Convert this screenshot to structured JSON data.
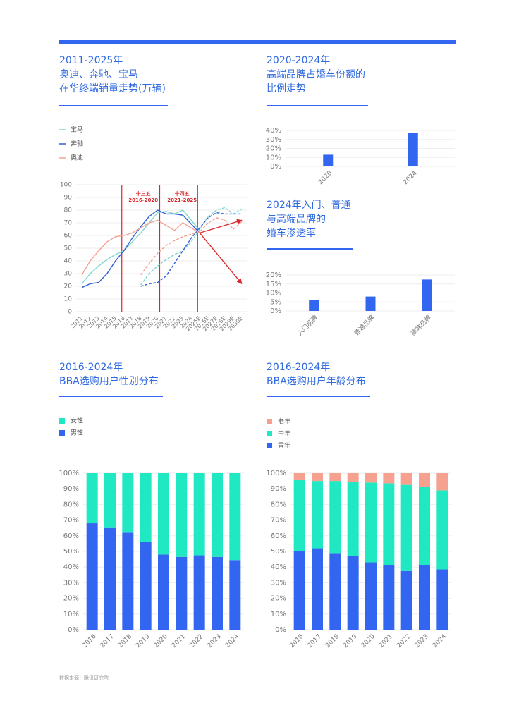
{
  "chart_data": [
    {
      "type": "line",
      "title": "2011-2025年\n奥迪、奔驰、宝马\n在华终端销量走势(万辆)",
      "categories": [
        "2011",
        "2012",
        "2013",
        "2014",
        "2015",
        "2016",
        "2017",
        "2018",
        "2019",
        "2020",
        "2021",
        "2022",
        "2023",
        "2024",
        "2025E",
        "2026E",
        "2027E",
        "2028E",
        "2029E",
        "2030E"
      ],
      "series": [
        {
          "name": "宝马",
          "color": "#7dd8cf",
          "values": [
            22,
            30,
            36,
            41,
            45,
            48,
            55,
            62,
            70,
            78,
            79,
            77,
            80,
            72,
            64,
            null,
            null,
            null,
            null,
            null
          ],
          "forecast_values": [
            null,
            null,
            null,
            null,
            null,
            null,
            null,
            21,
            30,
            36,
            41,
            45,
            48,
            55,
            65,
            75,
            80,
            82,
            77,
            81
          ]
        },
        {
          "name": "奔驰",
          "color": "#2f5fd8",
          "values": [
            19,
            22,
            23,
            30,
            40,
            48,
            58,
            67,
            75,
            80,
            77,
            77,
            76,
            69,
            62,
            null,
            null,
            null,
            null,
            null
          ],
          "forecast_values": [
            null,
            null,
            null,
            null,
            null,
            null,
            null,
            20,
            22,
            23,
            28,
            38,
            48,
            58,
            66,
            74,
            78,
            77,
            77,
            77
          ]
        },
        {
          "name": "奥迪",
          "color": "#f2a393",
          "values": [
            29,
            40,
            48,
            55,
            59,
            60,
            62,
            66,
            70,
            72,
            68,
            64,
            70,
            66,
            62,
            null,
            null,
            null,
            null,
            null
          ],
          "forecast_values": [
            null,
            null,
            null,
            null,
            null,
            null,
            null,
            29,
            38,
            46,
            52,
            56,
            59,
            61,
            63,
            70,
            74,
            72,
            65,
            71
          ]
        }
      ],
      "annotations": [
        "十三五\n2016-2020",
        "十四五\n2021-2025"
      ],
      "ylim": [
        0,
        100
      ],
      "yticks": [
        0,
        10,
        20,
        30,
        40,
        50,
        60,
        70,
        80,
        90,
        100
      ],
      "grid": true
    },
    {
      "type": "bar",
      "title": "2020-2024年\n高端品牌占婚车份额的\n比例走势",
      "categories": [
        "2020",
        "2024"
      ],
      "values": [
        13,
        37
      ],
      "color": "#3366f0",
      "ylim": [
        0,
        40
      ],
      "yticks": [
        {
          "value": 0,
          "label": "0%"
        },
        {
          "value": 10,
          "label": "10%"
        },
        {
          "value": 20,
          "label": "20%"
        },
        {
          "value": 30,
          "label": "30%"
        },
        {
          "value": 40,
          "label": "40%"
        }
      ],
      "grid": true
    },
    {
      "type": "bar",
      "title": "2024年入门、普通\n与高端品牌的\n婚车渗透率",
      "categories": [
        "入门品牌",
        "普通品牌",
        "高端品牌"
      ],
      "values": [
        6,
        8,
        17.5
      ],
      "color": "#3366f0",
      "ylim": [
        0,
        20
      ],
      "yticks": [
        {
          "value": 0,
          "label": "0%"
        },
        {
          "value": 5,
          "label": "5%"
        },
        {
          "value": 10,
          "label": "10%"
        },
        {
          "value": 15,
          "label": "15%"
        },
        {
          "value": 20,
          "label": "20%"
        }
      ],
      "grid": true
    },
    {
      "type": "stacked_bar",
      "title": "2016-2024年\nBBA选购用户性别分布",
      "categories": [
        "2016",
        "2017",
        "2018",
        "2019",
        "2020",
        "2021",
        "2022",
        "2023",
        "2024"
      ],
      "series": [
        {
          "name": "男性",
          "color": "#3366f0",
          "values": [
            68,
            65,
            62,
            56,
            48,
            46.5,
            47.5,
            46.5,
            44.5
          ]
        },
        {
          "name": "女性",
          "color": "#1fe8c3",
          "values": [
            32,
            35,
            38,
            44,
            52,
            53.5,
            52.5,
            53.5,
            55.5
          ]
        }
      ],
      "ylim": [
        0,
        100
      ],
      "yticks": [
        {
          "value": 0,
          "label": "0%"
        },
        {
          "value": 10,
          "label": "10%"
        },
        {
          "value": 20,
          "label": "20%"
        },
        {
          "value": 30,
          "label": "30%"
        },
        {
          "value": 40,
          "label": "40%"
        },
        {
          "value": 50,
          "label": "50%"
        },
        {
          "value": 60,
          "label": "60%"
        },
        {
          "value": 70,
          "label": "70%"
        },
        {
          "value": 80,
          "label": "80%"
        },
        {
          "value": 90,
          "label": "90%"
        },
        {
          "value": 100,
          "label": "100%"
        }
      ],
      "grid": true
    },
    {
      "type": "stacked_bar",
      "title": "2016-2024年\nBBA选购用户年龄分布",
      "categories": [
        "2016",
        "2017",
        "2018",
        "2019",
        "2020",
        "2021",
        "2022",
        "2023",
        "2024"
      ],
      "series": [
        {
          "name": "青年",
          "color": "#3366f0",
          "values": [
            50,
            52,
            48.5,
            47,
            43,
            41,
            37.5,
            41,
            38.5
          ]
        },
        {
          "name": "中年",
          "color": "#1fe8c3",
          "values": [
            45.5,
            43,
            46.5,
            47.5,
            51,
            52.5,
            55,
            50,
            50.5
          ]
        },
        {
          "name": "老年",
          "color": "#f6a08f",
          "values": [
            4.5,
            5,
            5,
            5.5,
            6,
            6.5,
            7.5,
            9,
            11
          ]
        }
      ],
      "ylim": [
        0,
        100
      ],
      "yticks": [
        {
          "value": 0,
          "label": "0%"
        },
        {
          "value": 10,
          "label": "10%"
        },
        {
          "value": 20,
          "label": "20%"
        },
        {
          "value": 30,
          "label": "30%"
        },
        {
          "value": 40,
          "label": "40%"
        },
        {
          "value": 50,
          "label": "50%"
        },
        {
          "value": 60,
          "label": "60%"
        },
        {
          "value": 70,
          "label": "70%"
        },
        {
          "value": 80,
          "label": "80%"
        },
        {
          "value": 90,
          "label": "90%"
        },
        {
          "value": 100,
          "label": "100%"
        }
      ],
      "grid": true
    }
  ],
  "source": "数据来源：腾讯研究院"
}
